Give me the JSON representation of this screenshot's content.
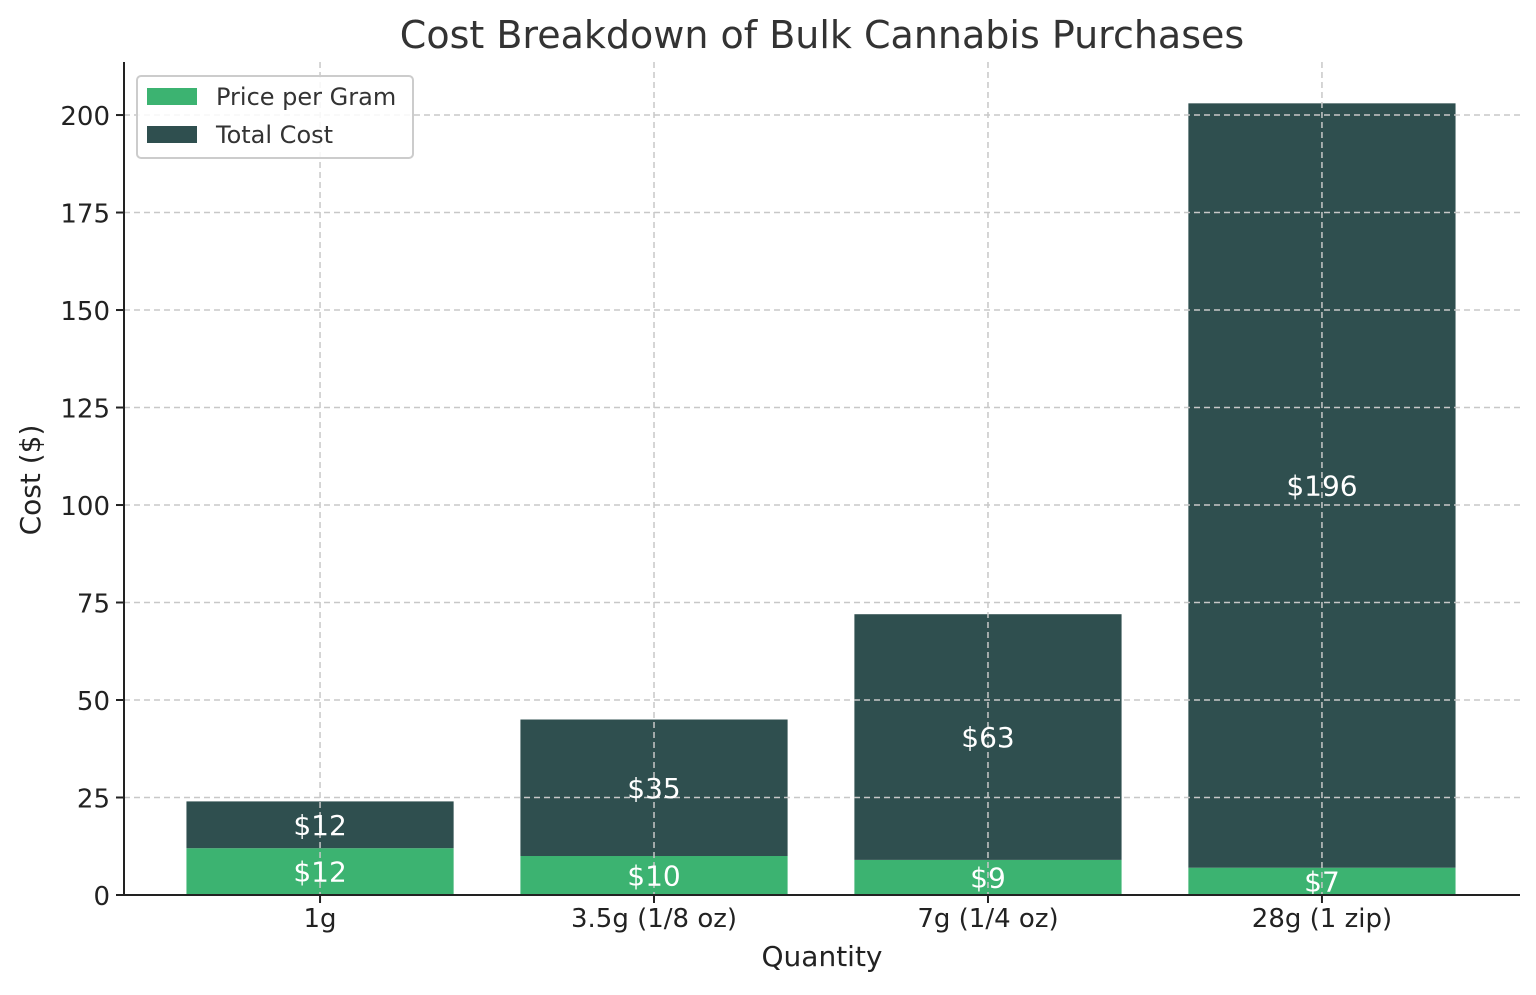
{
  "chart_data": {
    "type": "bar",
    "stacked": true,
    "title": "Cost Breakdown of Bulk Cannabis Purchases",
    "xlabel": "Quantity",
    "ylabel": "Cost ($)",
    "categories": [
      "1g",
      "3.5g (1/8 oz)",
      "7g (1/4 oz)",
      "28g (1 zip)"
    ],
    "series": [
      {
        "name": "Price per Gram",
        "values": [
          12,
          10,
          9,
          7
        ],
        "labels": [
          "$12",
          "$10",
          "$9",
          "$7"
        ],
        "color": "#3cb371"
      },
      {
        "name": "Total Cost",
        "values": [
          12,
          35,
          63,
          196
        ],
        "labels": [
          "$12",
          "$35",
          "$63",
          "$196"
        ],
        "color": "#2f4f4f"
      }
    ],
    "ylim": [
      0,
      213.6
    ],
    "yticks": [
      0,
      25,
      50,
      75,
      100,
      125,
      150,
      175,
      200
    ],
    "grid": true,
    "legend": "top-left"
  }
}
